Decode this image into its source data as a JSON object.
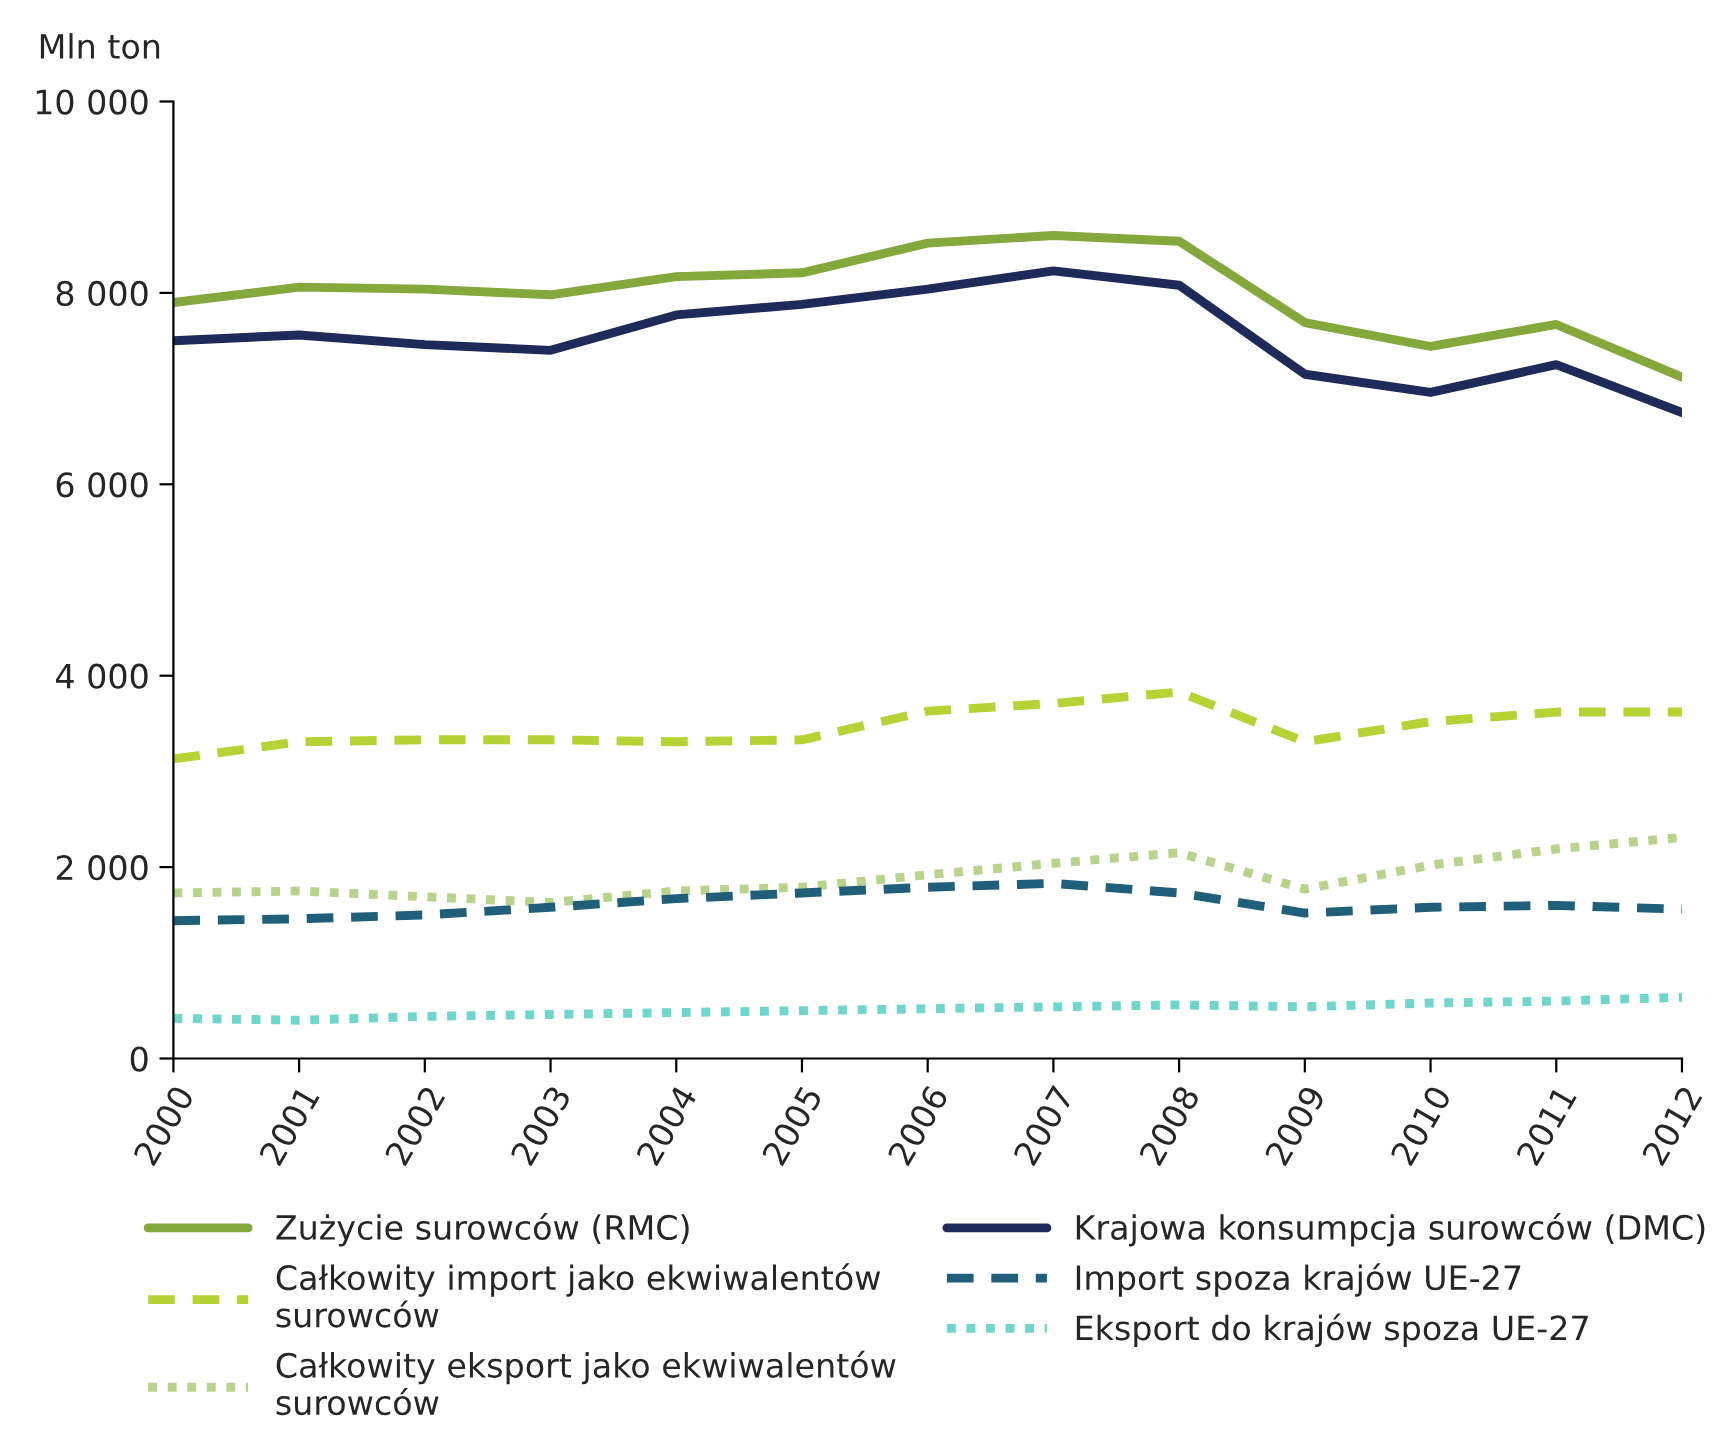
{
  "chart_data": {
    "type": "line",
    "ylabel": "Mln ton",
    "x": [
      2000,
      2001,
      2002,
      2003,
      2004,
      2005,
      2006,
      2007,
      2008,
      2009,
      2010,
      2011,
      2012
    ],
    "xlim": [
      2000,
      2012
    ],
    "xticks": [
      2000,
      2001,
      2002,
      2003,
      2004,
      2005,
      2006,
      2007,
      2008,
      2009,
      2010,
      2011,
      2012
    ],
    "ylim": [
      0,
      10000
    ],
    "yticks": [
      {
        "value": 0,
        "label": "0"
      },
      {
        "value": 2000,
        "label": "2 000"
      },
      {
        "value": 4000,
        "label": "4 000"
      },
      {
        "value": 6000,
        "label": "6 000"
      },
      {
        "value": 8000,
        "label": "8 000"
      },
      {
        "value": 10000,
        "label": "10 000"
      }
    ],
    "grid": false,
    "legend": "bottom",
    "marker": "none",
    "series": [
      {
        "name": "Zużycie surowców (RMC)",
        "color": "#84a83c",
        "line_style": "solid",
        "values": [
          7900,
          8060,
          8040,
          7980,
          8170,
          8210,
          8520,
          8600,
          8540,
          7690,
          7440,
          7670,
          7120
        ]
      },
      {
        "name": "Całkowity import jako ekwiwalentów\nsurowców",
        "color": "#b5d334",
        "line_style": "dashed",
        "values": [
          3130,
          3310,
          3330,
          3330,
          3310,
          3330,
          3630,
          3710,
          3830,
          3310,
          3520,
          3620,
          3620
        ]
      },
      {
        "name": "Całkowity eksport jako ekwiwalentów\nsurowców",
        "color": "#b8d48c",
        "line_style": "dotted",
        "values": [
          1730,
          1750,
          1690,
          1630,
          1750,
          1790,
          1920,
          2040,
          2150,
          1770,
          2020,
          2190,
          2310
        ]
      },
      {
        "name": "Krajowa konsumpcja surowców (DMC)",
        "color": "#1e2a5a",
        "line_style": "solid",
        "values": [
          7500,
          7560,
          7460,
          7400,
          7770,
          7880,
          8040,
          8230,
          8080,
          7150,
          6960,
          7250,
          6750
        ]
      },
      {
        "name": "Import spoza krajów UE-27",
        "color": "#1f5f7a",
        "line_style": "dashed",
        "values": [
          1440,
          1460,
          1500,
          1580,
          1670,
          1730,
          1790,
          1830,
          1730,
          1520,
          1580,
          1600,
          1560
        ]
      },
      {
        "name": "Eksport do krajów spoza UE-27",
        "color": "#6fd6cc",
        "line_style": "dotted",
        "values": [
          420,
          400,
          440,
          460,
          480,
          500,
          520,
          540,
          560,
          540,
          580,
          600,
          640
        ]
      }
    ]
  }
}
